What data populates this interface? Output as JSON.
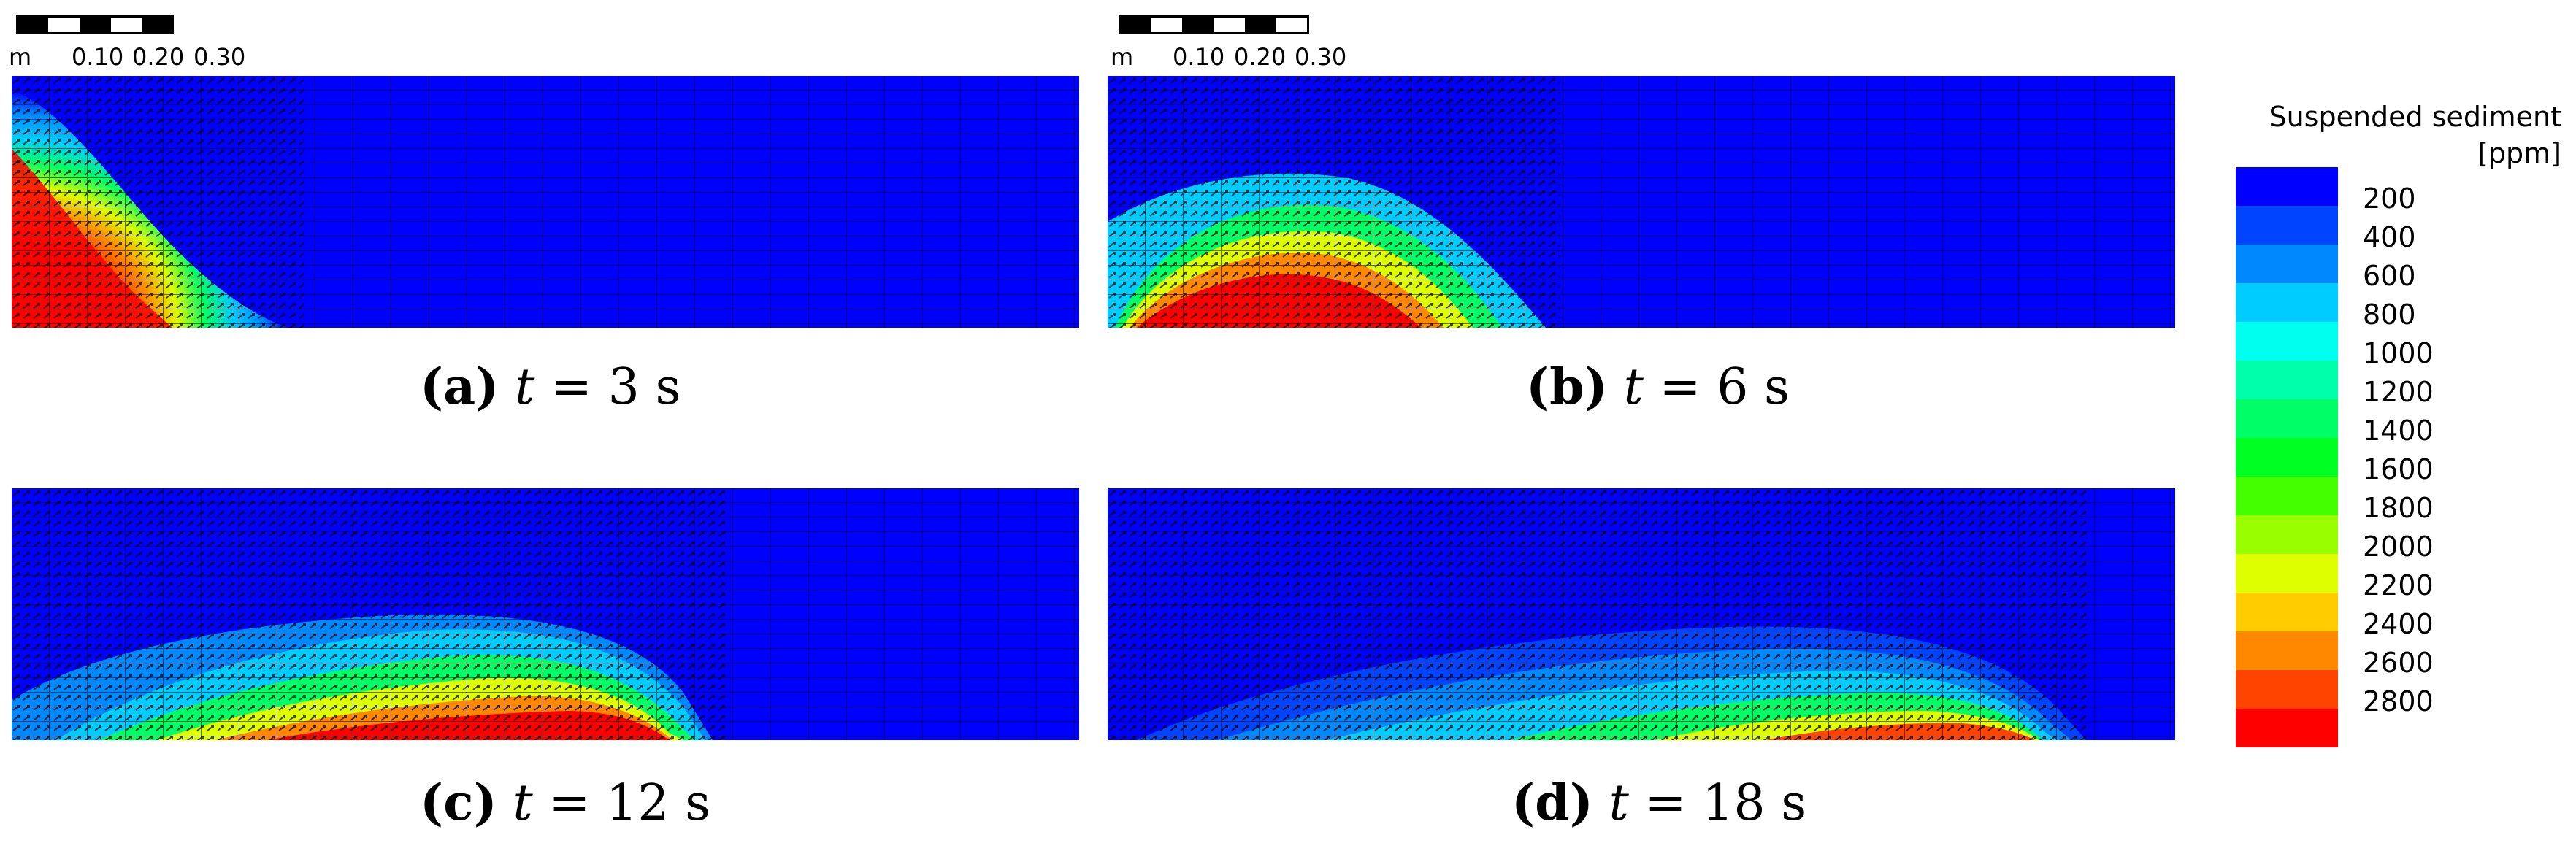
{
  "scale_bar": {
    "unit": "m",
    "ticks": [
      "0.10",
      "0.20",
      "0.30"
    ]
  },
  "panels": [
    {
      "label": "(a)",
      "variable": "t",
      "equals": "=",
      "value": "3",
      "unit": "s"
    },
    {
      "label": "(b)",
      "variable": "t",
      "equals": "=",
      "value": "6",
      "unit": "s"
    },
    {
      "label": "(c)",
      "variable": "t",
      "equals": "=",
      "value": "12",
      "unit": "s"
    },
    {
      "label": "(d)",
      "variable": "t",
      "equals": "=",
      "value": "18",
      "unit": "s"
    }
  ],
  "legend": {
    "title": "Suspended sediment",
    "unit": "[ppm]",
    "levels": [
      "200",
      "400",
      "600",
      "800",
      "1000",
      "1200",
      "1400",
      "1600",
      "1800",
      "2000",
      "2200",
      "2400",
      "2600",
      "2800"
    ],
    "colors": [
      "#0000ff",
      "#0044ff",
      "#0088ff",
      "#00ccff",
      "#00ffee",
      "#00ffaa",
      "#00ff66",
      "#00ff22",
      "#44ff00",
      "#99ff00",
      "#ddff00",
      "#ffcc00",
      "#ff8800",
      "#ff4400",
      "#ff0000"
    ]
  },
  "colors": {
    "background_fluid": "#0000ff",
    "mesh_lines": "#000000",
    "velocity_arrows": "#000000"
  }
}
